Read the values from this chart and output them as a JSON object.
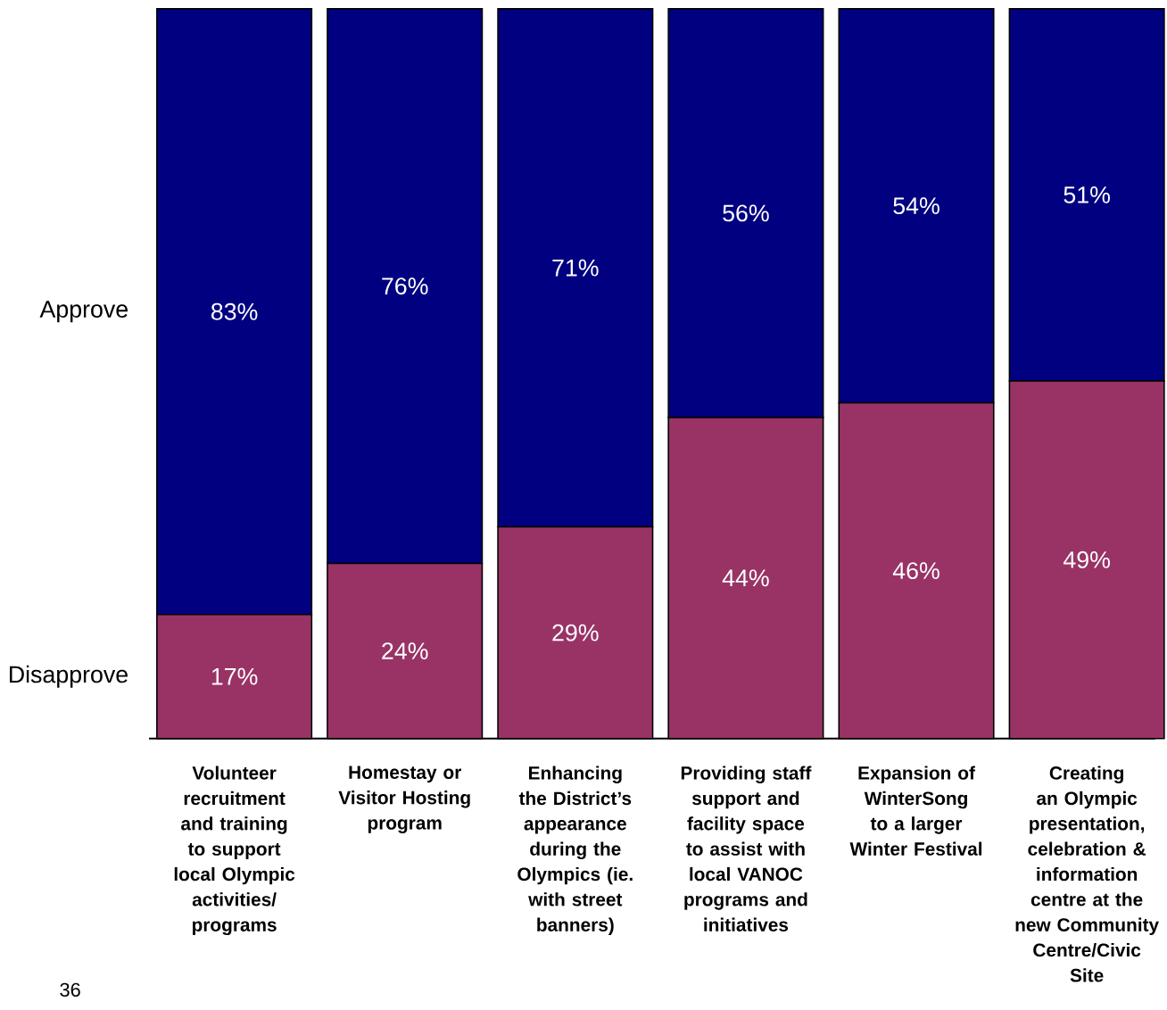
{
  "chart_data": {
    "type": "bar",
    "stacked": true,
    "legend": false,
    "categories": [
      "Volunteer recruitment and training to support local Olympic activities/ programs",
      "Homestay or Visitor Hosting program",
      "Enhancing the District’s appearance during the Olympics (ie. with street banners)",
      "Providing staff support and facility space to assist with local VANOC programs and initiatives",
      "Expansion of WinterSong to a larger Winter Festival",
      "Creating an Olympic presentation, celebration & information centre at the new Community Centre/Civic Site"
    ],
    "series": [
      {
        "name": "Disapprove",
        "color": "#993366",
        "values": [
          17,
          24,
          29,
          44,
          46,
          49
        ],
        "value_labels": [
          "17%",
          "24%",
          "29%",
          "44%",
          "46%",
          "49%"
        ]
      },
      {
        "name": "Approve",
        "color": "#000080",
        "values": [
          83,
          76,
          71,
          56,
          54,
          51
        ],
        "value_labels": [
          "83%",
          "76%",
          "71%",
          "56%",
          "54%",
          "51%"
        ]
      }
    ],
    "annotations": [
      "36"
    ]
  }
}
